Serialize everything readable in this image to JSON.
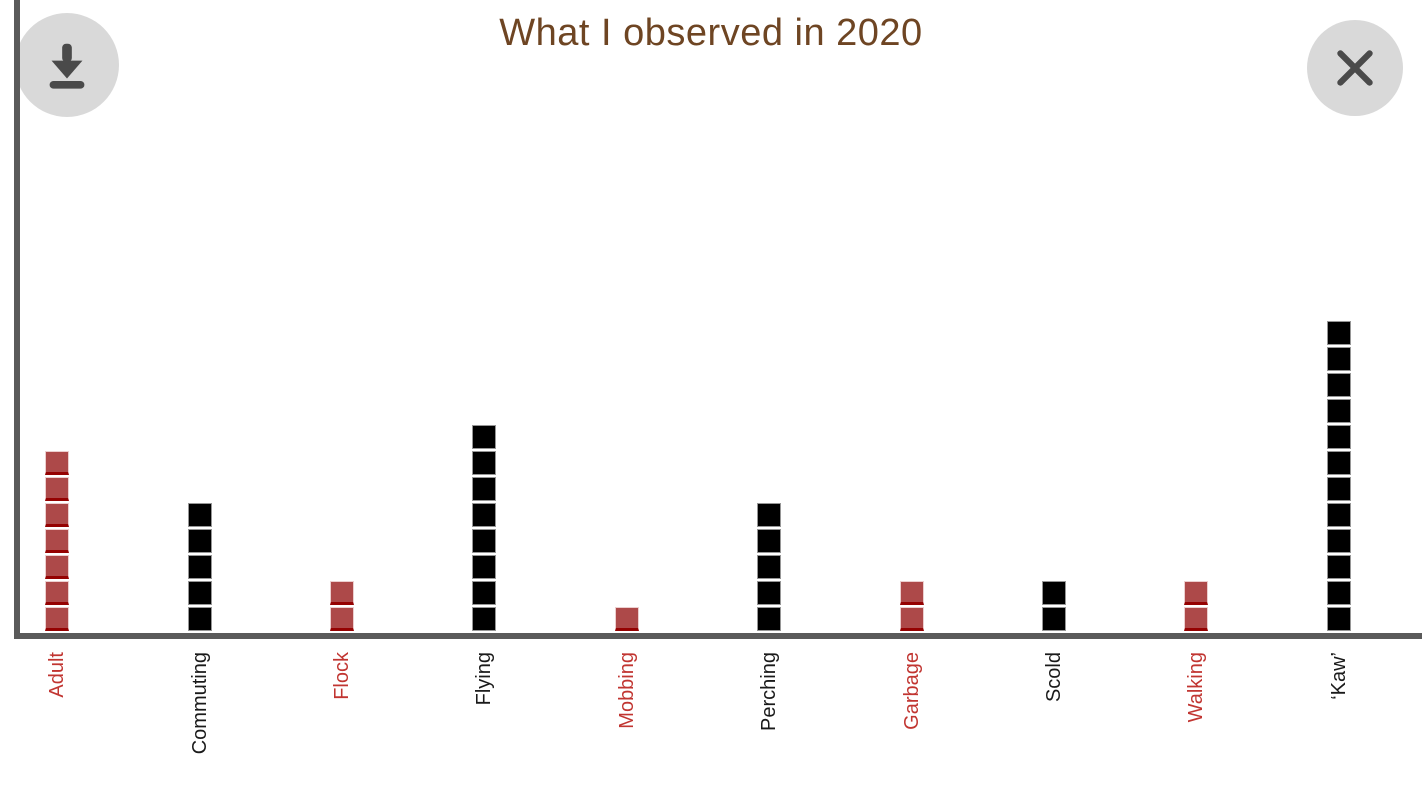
{
  "title": "What I observed in 2020",
  "buttons": {
    "download_label": "Download chart",
    "close_label": "Close"
  },
  "colors": {
    "title": "#6e4523",
    "axis": "#5a5a5a",
    "red_fill": "#ad4949",
    "red_accent": "#950202",
    "red_label": "#c13531",
    "black_fill": "#000000",
    "black_border": "#969696",
    "black_label": "#1a1a1a",
    "button_bg": "#d9d9d9",
    "button_icon": "#4a4a4a"
  },
  "chart_data": {
    "type": "bar",
    "subtype": "isotype-waffle",
    "unit": "1 square = 1 observation",
    "title": "What I observed in 2020",
    "xlabel": "",
    "ylabel": "",
    "ylim": [
      0,
      12
    ],
    "grid": false,
    "legend": "none",
    "categories": [
      "Adult",
      "Commuting",
      "Flock",
      "Flying",
      "Mobbing",
      "Perching",
      "Garbage",
      "Scold",
      "Walking",
      "‘Kaw’"
    ],
    "values": [
      7,
      5,
      2,
      8,
      1,
      5,
      2,
      2,
      2,
      12
    ],
    "bar_colors": [
      "red",
      "black",
      "red",
      "black",
      "red",
      "black",
      "red",
      "black",
      "red",
      "black"
    ]
  }
}
